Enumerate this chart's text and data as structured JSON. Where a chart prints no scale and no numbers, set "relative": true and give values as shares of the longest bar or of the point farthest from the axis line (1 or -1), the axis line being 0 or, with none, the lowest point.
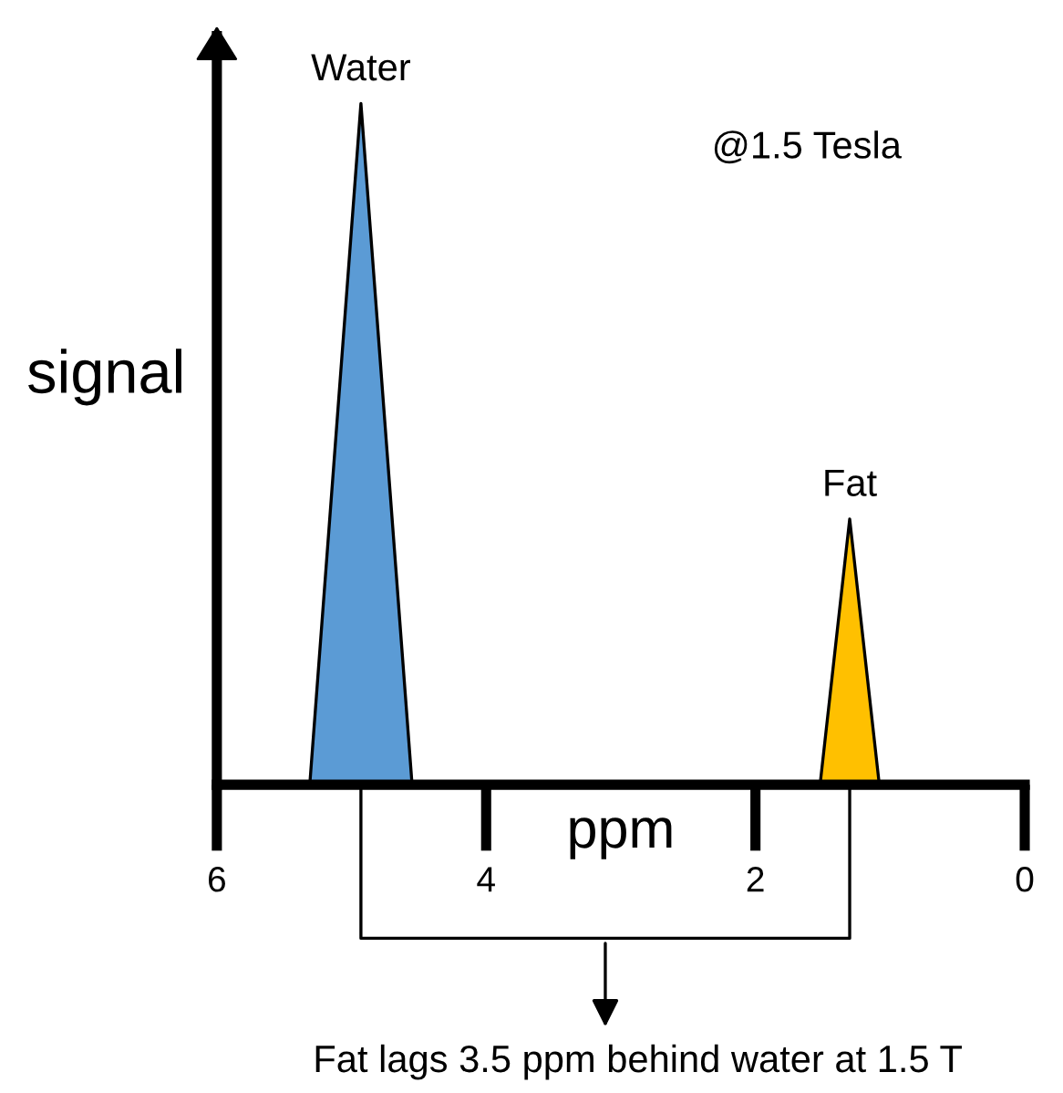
{
  "chart_data": {
    "type": "area",
    "relative": true,
    "ylabel": "signal",
    "xlabel": "ppm",
    "xlim": [
      6,
      0
    ],
    "xticks": [
      6,
      4,
      2,
      0
    ],
    "grid": false,
    "series": [
      {
        "color": "#5b9bd5",
        "x": [
          5.31,
          4.93,
          4.55
        ],
        "values": [
          0,
          1,
          0
        ]
      },
      {
        "color": "#ffc000",
        "x": [
          1.52,
          1.3,
          1.08
        ],
        "values": [
          0,
          0.39,
          0
        ]
      }
    ],
    "annotations": [
      {
        "text": "Water",
        "x": 4.93,
        "y": 1
      },
      {
        "text": "Fat",
        "x": 1.3,
        "y": 0.39
      },
      "@1.5 Tesla",
      "Fat lags 3.5 ppm behind water at 1.5 T"
    ]
  }
}
